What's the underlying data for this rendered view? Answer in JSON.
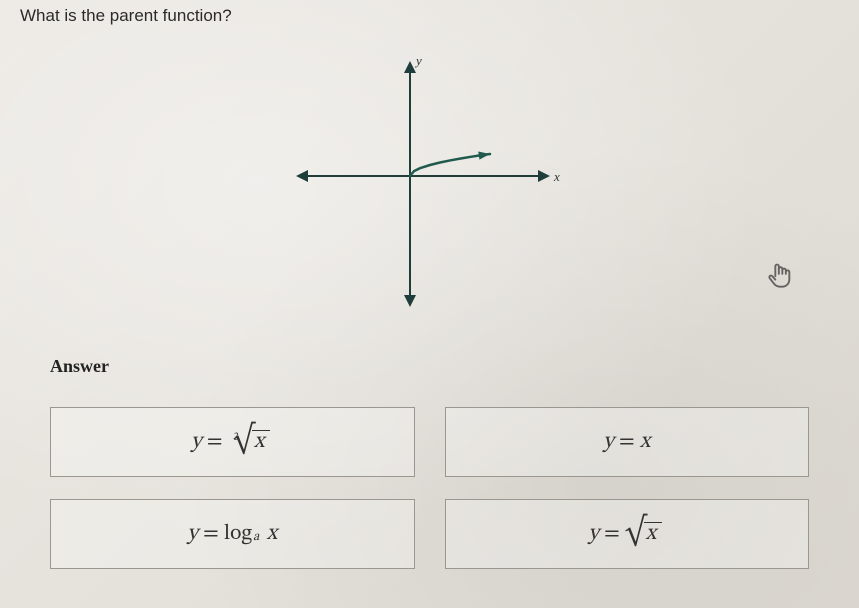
{
  "question": "What is the parent function?",
  "graph": {
    "type": "function-plot",
    "x_axis_label": "x",
    "y_axis_label": "y",
    "axis_color": "#1f3d3a",
    "curve_color": "#1f5a4d",
    "curve_width": 2.5,
    "background": "transparent",
    "xlim": [
      -6,
      6
    ],
    "ylim": [
      -6,
      6
    ],
    "curve_points": [
      [
        0.0,
        0.0
      ],
      [
        0.2,
        0.447
      ],
      [
        0.5,
        0.707
      ],
      [
        1,
        1.0
      ],
      [
        1.5,
        1.225
      ],
      [
        2,
        1.414
      ],
      [
        2.5,
        1.581
      ],
      [
        3,
        1.732
      ],
      [
        3.5,
        1.871
      ],
      [
        4,
        2.0
      ]
    ],
    "plot_scale_y": 0.55
  },
  "answer_label": "Answer",
  "options": [
    {
      "id": "opt-cuberoot",
      "kind": "cuberoot",
      "display_var": "x"
    },
    {
      "id": "opt-identity",
      "kind": "identity",
      "display_var": "x"
    },
    {
      "id": "opt-log",
      "kind": "log",
      "display_var": "x",
      "base": "a"
    },
    {
      "id": "opt-sqrt",
      "kind": "sqrt",
      "display_var": "x"
    }
  ],
  "colors": {
    "border": "#9a9690",
    "text": "#333333"
  }
}
